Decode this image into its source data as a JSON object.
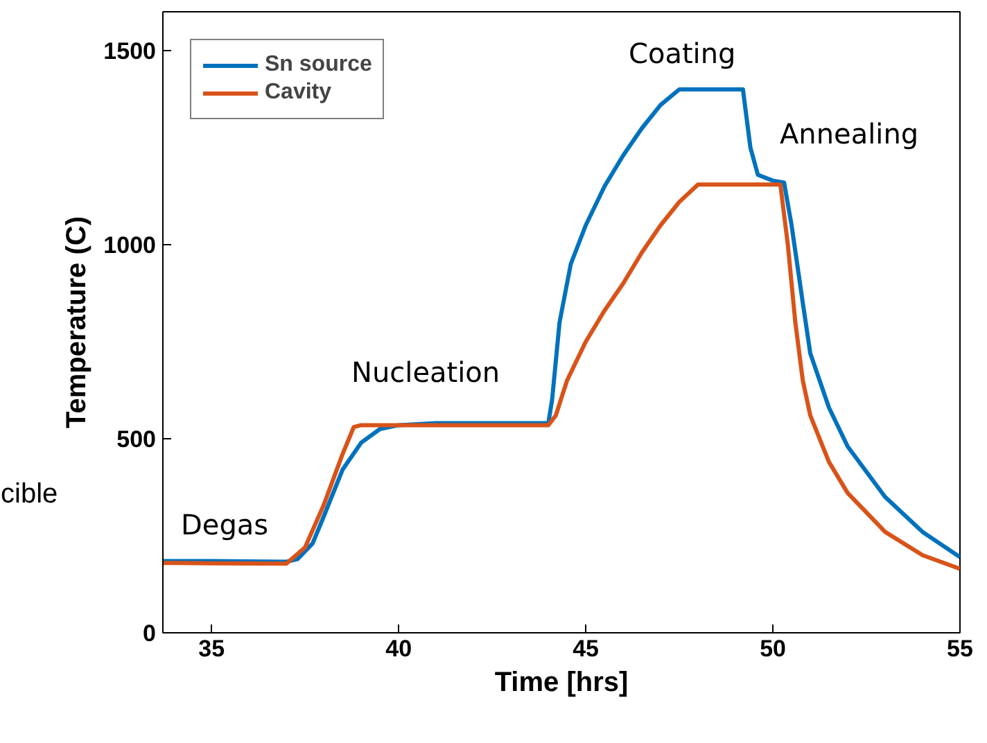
{
  "chart_data": {
    "type": "line",
    "xlabel": "Time [hrs]",
    "ylabel": "Temperature (C)",
    "xlim": [
      33.7,
      55
    ],
    "ylim": [
      0,
      1600
    ],
    "xticks": [
      35,
      40,
      45,
      50,
      55
    ],
    "yticks": [
      0,
      500,
      1000,
      1500
    ],
    "grid": false,
    "legend": "top left",
    "line_style": "solid",
    "marker": "none",
    "series": [
      {
        "name": "Sn source",
        "color": "#0072bd",
        "x": [
          33.7,
          35,
          37,
          37.3,
          37.7,
          38,
          38.5,
          39,
          39.5,
          40,
          41,
          44,
          44.1,
          44.3,
          44.6,
          45,
          45.5,
          46,
          46.5,
          47,
          47.5,
          49.2,
          49.4,
          49.6,
          50,
          50.3,
          50.5,
          50.8,
          51,
          51.5,
          52,
          53,
          54,
          55
        ],
        "values": [
          185,
          185,
          183,
          190,
          230,
          300,
          420,
          490,
          525,
          535,
          540,
          540,
          600,
          800,
          950,
          1050,
          1150,
          1230,
          1300,
          1360,
          1400,
          1400,
          1250,
          1180,
          1165,
          1160,
          1050,
          850,
          720,
          580,
          480,
          350,
          260,
          195
        ]
      },
      {
        "name": "Cavity",
        "color": "#d95319",
        "x": [
          33.7,
          35,
          37,
          37.5,
          38,
          38.5,
          38.8,
          39,
          44,
          44.2,
          44.5,
          45,
          45.5,
          46,
          46.5,
          47,
          47.5,
          48,
          50.2,
          50.4,
          50.6,
          50.8,
          51,
          51.5,
          52,
          53,
          54,
          55
        ],
        "values": [
          180,
          179,
          178,
          220,
          330,
          460,
          530,
          535,
          535,
          560,
          650,
          750,
          830,
          900,
          980,
          1050,
          1110,
          1155,
          1155,
          1000,
          800,
          650,
          560,
          440,
          360,
          260,
          200,
          165
        ]
      }
    ],
    "annotations": [
      "Degas",
      "Nucleation",
      "Coating",
      "Annealing",
      "cible"
    ]
  }
}
